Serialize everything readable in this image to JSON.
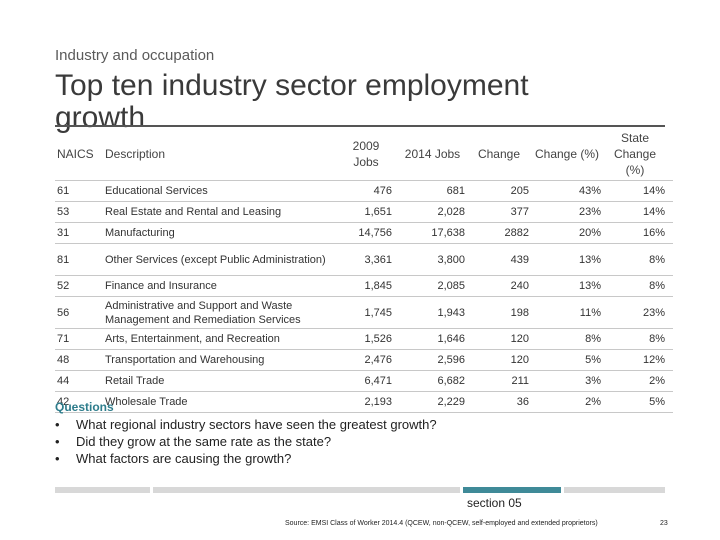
{
  "header": {
    "subtitle": "Industry and occupation",
    "title": "Top ten industry sector employment growth"
  },
  "table": {
    "columns": {
      "naics": "NAICS",
      "description": "Description",
      "jobs_2009": "2009 Jobs",
      "jobs_2014": "2014 Jobs",
      "change": "Change",
      "change_pct": "Change (%)",
      "state_change": "State Change (%)"
    },
    "rows": [
      {
        "naics": "61",
        "description": "Educational Services",
        "jobs_2009": "476",
        "jobs_2014": "681",
        "change": "205",
        "change_pct": "43%",
        "state_change": "14%"
      },
      {
        "naics": "53",
        "description": "Real Estate and Rental and Leasing",
        "jobs_2009": "1,651",
        "jobs_2014": "2,028",
        "change": "377",
        "change_pct": "23%",
        "state_change": "14%"
      },
      {
        "naics": "31",
        "description": "Manufacturing",
        "jobs_2009": "14,756",
        "jobs_2014": "17,638",
        "change": "2882",
        "change_pct": "20%",
        "state_change": "16%"
      },
      {
        "naics": "81",
        "description": "Other Services (except Public Administration)",
        "jobs_2009": "3,361",
        "jobs_2014": "3,800",
        "change": "439",
        "change_pct": "13%",
        "state_change": "8%"
      },
      {
        "naics": "52",
        "description": "Finance and Insurance",
        "jobs_2009": "1,845",
        "jobs_2014": "2,085",
        "change": "240",
        "change_pct": "13%",
        "state_change": "8%"
      },
      {
        "naics": "56",
        "description": "Administrative and Support and Waste Management and Remediation Services",
        "jobs_2009": "1,745",
        "jobs_2014": "1,943",
        "change": "198",
        "change_pct": "11%",
        "state_change": "23%"
      },
      {
        "naics": "71",
        "description": "Arts, Entertainment, and Recreation",
        "jobs_2009": "1,526",
        "jobs_2014": "1,646",
        "change": "120",
        "change_pct": "8%",
        "state_change": "8%"
      },
      {
        "naics": "48",
        "description": "Transportation and Warehousing",
        "jobs_2009": "2,476",
        "jobs_2014": "2,596",
        "change": "120",
        "change_pct": "5%",
        "state_change": "12%"
      },
      {
        "naics": "44",
        "description": "Retail Trade",
        "jobs_2009": "6,471",
        "jobs_2014": "6,682",
        "change": "211",
        "change_pct": "3%",
        "state_change": "2%"
      },
      {
        "naics": "42",
        "description": "Wholesale Trade",
        "jobs_2009": "2,193",
        "jobs_2014": "2,229",
        "change": "36",
        "change_pct": "2%",
        "state_change": "5%"
      }
    ]
  },
  "questions": {
    "heading": "Questions",
    "bullet": "•",
    "items": [
      "What regional industry sectors have seen the greatest growth?",
      "Did they grow at the same rate as the state?",
      "What factors are causing the growth?"
    ]
  },
  "footer": {
    "section": "section 05",
    "source": "Source: EMSI Class of Worker 2014.4 (QCEW, non-QCEW, self-employed and extended proprietors)",
    "page": "23",
    "accent_color": "#3f8a98",
    "bar_color": "#d8d8d8"
  }
}
